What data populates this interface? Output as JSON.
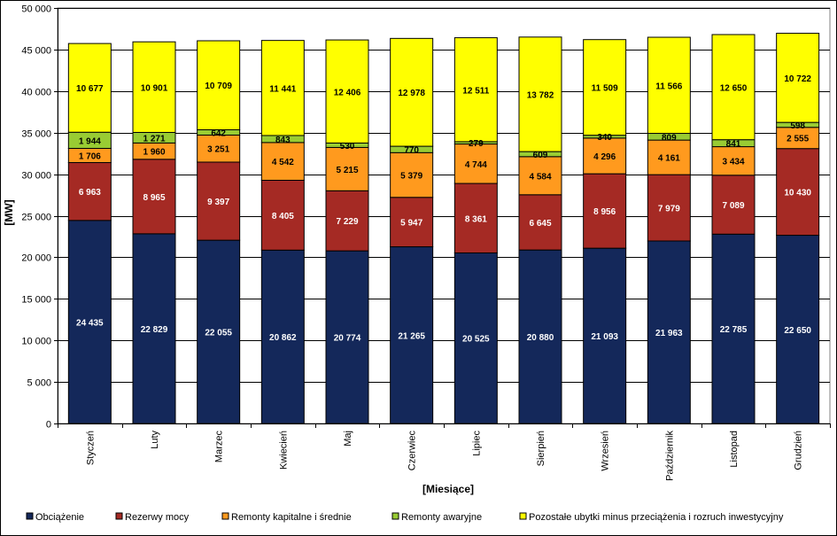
{
  "chart_data": {
    "type": "bar",
    "stacked": true,
    "xlabel": "[Miesiące]",
    "ylabel": "[MW]",
    "ylim": [
      0,
      50000
    ],
    "ytick_step": 5000,
    "grid": "horizontal",
    "legend_position": "bottom",
    "categories": [
      "Styczeń",
      "Luty",
      "Marzec",
      "Kwiecień",
      "Maj",
      "Czerwiec",
      "Lipiec",
      "Sierpień",
      "Wrzesień",
      "Październik",
      "Listopad",
      "Grudzień"
    ],
    "ytick_labels": [
      "0",
      "5 000",
      "10 000",
      "15 000",
      "20 000",
      "25 000",
      "30 000",
      "35 000",
      "40 000",
      "45 000",
      "50 000"
    ],
    "series": [
      {
        "name": "Obciążenie",
        "color": "#14285a",
        "label_color": "#ffffff",
        "values": [
          24435,
          22829,
          22055,
          20862,
          20774,
          21265,
          20525,
          20880,
          21093,
          21963,
          22785,
          22650
        ],
        "labels": [
          "24 435",
          "22 829",
          "22 055",
          "20 862",
          "20 774",
          "21 265",
          "20 525",
          "20 880",
          "21 093",
          "21 963",
          "22 785",
          "22 650"
        ]
      },
      {
        "name": "Rezerwy mocy",
        "color": "#a52a24",
        "label_color": "#ffffff",
        "values": [
          6963,
          8965,
          9397,
          8405,
          7229,
          5947,
          8361,
          6645,
          8956,
          7979,
          7089,
          10430
        ],
        "labels": [
          "6 963",
          "8 965",
          "9 397",
          "8 405",
          "7 229",
          "5 947",
          "8 361",
          "6 645",
          "8 956",
          "7 979",
          "7 089",
          "10 430"
        ]
      },
      {
        "name": "Remonty kapitalne i średnie",
        "color": "#ff9a1e",
        "label_color": "#000000",
        "values": [
          1706,
          1960,
          3251,
          4542,
          5215,
          5379,
          4744,
          4584,
          4296,
          4161,
          3434,
          2555
        ],
        "labels": [
          "1 706",
          "1 960",
          "3 251",
          "4 542",
          "5 215",
          "5 379",
          "4 744",
          "4 584",
          "4 296",
          "4 161",
          "3 434",
          "2 555"
        ]
      },
      {
        "name": "Remonty awaryjne",
        "color": "#99cc33",
        "label_color": "#000000",
        "values": [
          1944,
          1271,
          642,
          843,
          530,
          770,
          279,
          609,
          340,
          809,
          841,
          598
        ],
        "labels": [
          "1 944",
          "1 271",
          "642",
          "843",
          "530",
          "770",
          "279",
          "609",
          "340",
          "809",
          "841",
          "598"
        ]
      },
      {
        "name": "Pozostałe ubytki minus przeciążenia i rozruch inwestycyjny",
        "color": "#ffff00",
        "label_color": "#000000",
        "values": [
          10677,
          10901,
          10709,
          11441,
          12406,
          12978,
          12511,
          13782,
          11509,
          11566,
          12650,
          10722
        ],
        "labels": [
          "10 677",
          "10 901",
          "10 709",
          "11 441",
          "12 406",
          "12 978",
          "12 511",
          "13 782",
          "11 509",
          "11 566",
          "12 650",
          "10 722"
        ]
      }
    ]
  }
}
